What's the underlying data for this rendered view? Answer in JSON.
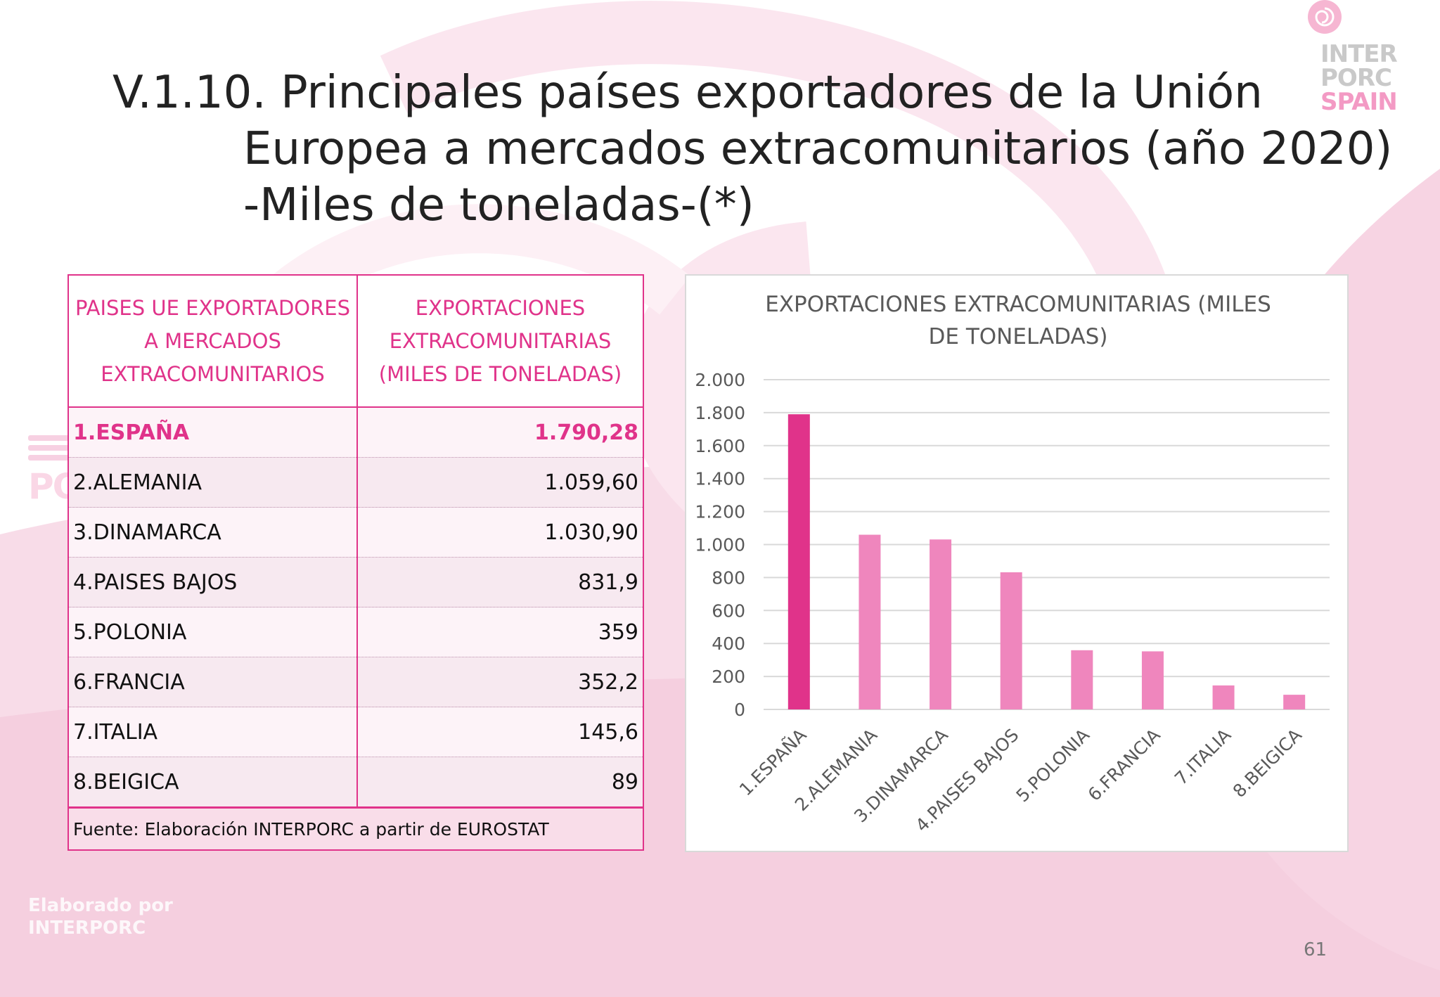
{
  "slide": {
    "title_line1": "V.1.10. Principales países exportadores de la Unión",
    "title_line2": "Europea a mercados extracomunitarios (año 2020)",
    "title_line3": "-Miles de toneladas-(*)",
    "page_number": "61"
  },
  "logo": {
    "line1": "INTER",
    "line2": "PORC",
    "line3": "SPAIN",
    "watermark_word": "PORC"
  },
  "footer_brand": {
    "line1": "Elaborado por",
    "line2": "INTERPORC"
  },
  "table": {
    "header_col1": "PAISES UE EXPORTADORES A MERCADOS EXTRACOMUNITARIOS",
    "header_col2": "EXPORTACIONES EXTRACOMUNITARIAS (MILES DE TONELADAS)",
    "rows": [
      {
        "country": "1.ESPAÑA",
        "value": "1.790,28"
      },
      {
        "country": "2.ALEMANIA",
        "value": "1.059,60"
      },
      {
        "country": "3.DINAMARCA",
        "value": "1.030,90"
      },
      {
        "country": "4.PAISES BAJOS",
        "value": "831,9"
      },
      {
        "country": "5.POLONIA",
        "value": "359"
      },
      {
        "country": "6.FRANCIA",
        "value": "352,2"
      },
      {
        "country": "7.ITALIA",
        "value": "145,6"
      },
      {
        "country": "8.BEIGICA",
        "value": "89"
      }
    ],
    "source": "Fuente: Elaboración INTERPORC a partir de EUROSTAT"
  },
  "chart_data": {
    "type": "bar",
    "title_line1": "EXPORTACIONES EXTRACOMUNITARIAS (MILES",
    "title_line2": "DE TONELADAS)",
    "categories": [
      "1.ESPAÑA",
      "2.ALEMANIA",
      "3.DINAMARCA",
      "4.PAISES BAJOS",
      "5.POLONIA",
      "6.FRANCIA",
      "7.ITALIA",
      "8.BEIGICA"
    ],
    "values": [
      1790.28,
      1059.6,
      1030.9,
      831.9,
      359,
      352.2,
      145.6,
      89
    ],
    "ylim": [
      0,
      2000
    ],
    "yticks": [
      0,
      200,
      400,
      600,
      800,
      1000,
      1200,
      1400,
      1600,
      1800,
      2000
    ],
    "ytick_labels": [
      "0",
      "200",
      "400",
      "600",
      "800",
      "1.000",
      "1.200",
      "1.400",
      "1.600",
      "1.800",
      "2.000"
    ],
    "grid": true,
    "legend": "none",
    "colors": {
      "highlight": "#e0338a",
      "bar": "#ef86bd",
      "grid": "#d9d9d9",
      "text": "#595959"
    }
  }
}
